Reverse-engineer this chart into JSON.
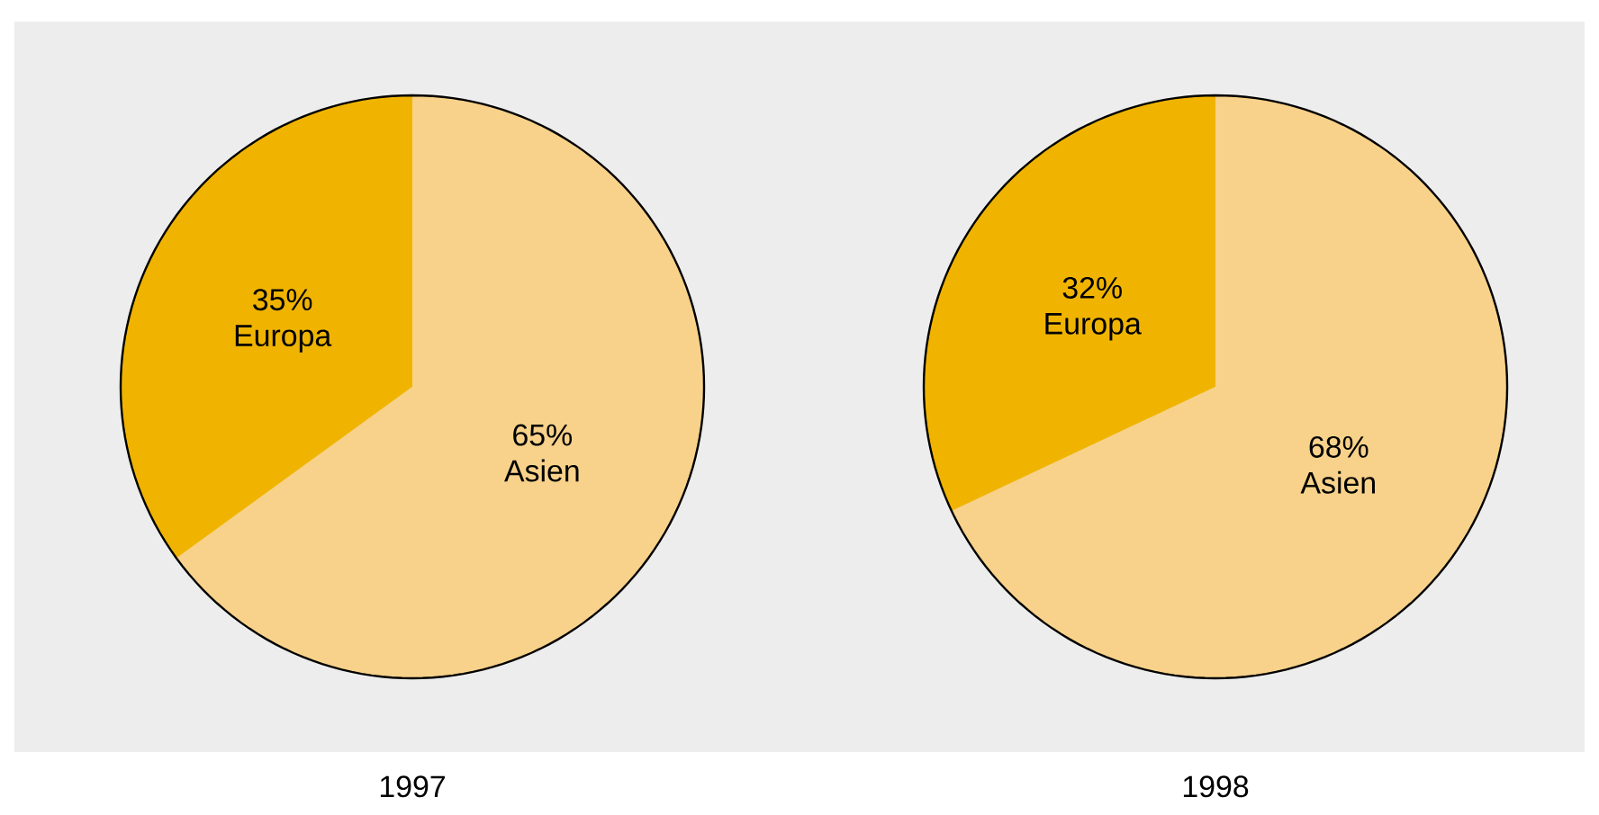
{
  "chart_data": [
    {
      "type": "pie",
      "title": "1997",
      "categories": [
        "Asien",
        "Europa"
      ],
      "values": [
        65,
        35
      ],
      "value_labels": [
        "65%",
        "35%"
      ],
      "colors": [
        "#f8d28a",
        "#f0b400"
      ]
    },
    {
      "type": "pie",
      "title": "1998",
      "categories": [
        "Asien",
        "Europa"
      ],
      "values": [
        68,
        32
      ],
      "value_labels": [
        "68%",
        "32%"
      ],
      "colors": [
        "#f8d28a",
        "#f0b400"
      ]
    }
  ]
}
